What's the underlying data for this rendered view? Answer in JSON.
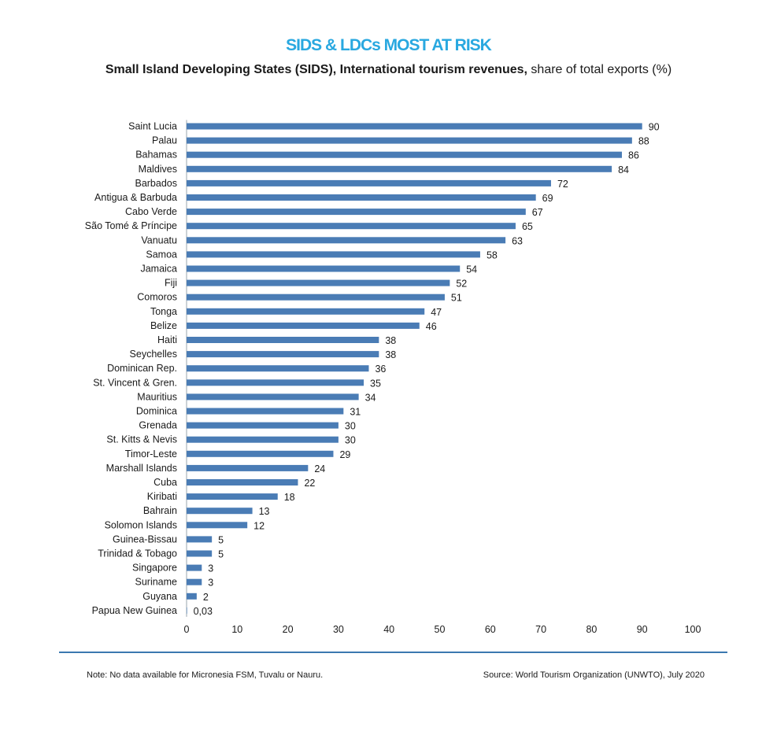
{
  "header": {
    "headline": "SIDS & LDCs MOST AT RISK",
    "subtitle_bold": "Small Island Developing States (SIDS), International tourism revenues,",
    "subtitle_rest": " share of total exports (%)"
  },
  "footer": {
    "note": "Note: No data available for Micronesia FSM, Tuvalu or Nauru.",
    "source": "Source: World Tourism Organization (UNWTO), July 2020"
  },
  "chart_data": {
    "type": "bar",
    "orientation": "horizontal",
    "title": "",
    "xlabel": "",
    "ylabel": "",
    "xlim": [
      0,
      100
    ],
    "ticks": [
      0,
      10,
      20,
      30,
      40,
      50,
      60,
      70,
      80,
      90,
      100
    ],
    "grid": false,
    "bar_color": "#4a7cb5",
    "categories": [
      "Saint Lucia",
      "Palau",
      "Bahamas",
      "Maldives",
      "Barbados",
      "Antigua & Barbuda",
      "Cabo Verde",
      "São Tomé & Príncipe",
      "Vanuatu",
      "Samoa",
      "Jamaica",
      "Fiji",
      "Comoros",
      "Tonga",
      "Belize",
      "Haiti",
      "Seychelles",
      "Dominican Rep.",
      "St. Vincent & Gren.",
      "Mauritius",
      "Dominica",
      "Grenada",
      "St. Kitts & Nevis",
      "Timor-Leste",
      "Marshall Islands",
      "Cuba",
      "Kiribati",
      "Bahrain",
      "Solomon Islands",
      "Guinea-Bissau",
      "Trinidad & Tobago",
      "Singapore",
      "Suriname",
      "Guyana",
      "Papua New Guinea"
    ],
    "values": [
      90,
      88,
      86,
      84,
      72,
      69,
      67,
      65,
      63,
      58,
      54,
      52,
      51,
      47,
      46,
      38,
      38,
      36,
      35,
      34,
      31,
      30,
      30,
      29,
      24,
      22,
      18,
      13,
      12,
      5,
      5,
      3,
      3,
      2,
      0.03
    ],
    "value_labels": [
      "90",
      "88",
      "86",
      "84",
      "72",
      "69",
      "67",
      "65",
      "63",
      "58",
      "54",
      "52",
      "51",
      "47",
      "46",
      "38",
      "38",
      "36",
      "35",
      "34",
      "31",
      "30",
      "30",
      "29",
      "24",
      "22",
      "18",
      "13",
      "12",
      "5",
      "5",
      "3",
      "3",
      "2",
      "0,03"
    ]
  }
}
